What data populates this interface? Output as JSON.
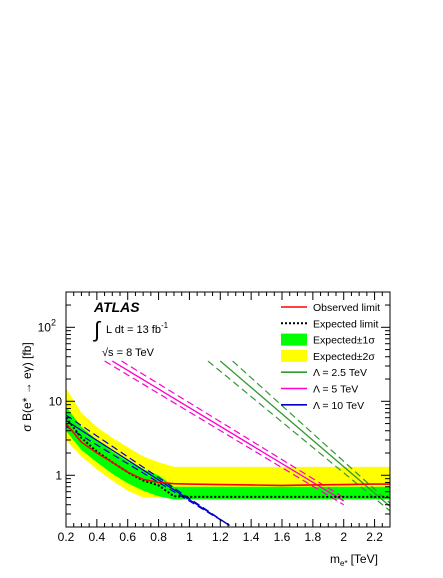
{
  "chart_data": {
    "type": "line",
    "x_scale": "linear",
    "y_scale": "log",
    "xlabel": "m",
    "xlabel_sub": "e*",
    "xlabel_unit": "[TeV]",
    "ylabel": "σ B(e* → eγ) [fb]",
    "xlim": [
      0.2,
      2.3
    ],
    "ylim": [
      0.2,
      300
    ],
    "x_ticks": [
      "0.2",
      "0.4",
      "0.6",
      "0.8",
      "1",
      "1.2",
      "1.4",
      "1.6",
      "1.8",
      "2",
      "2.2"
    ],
    "y_ticks": [
      "1",
      "10",
      "10^2"
    ],
    "annotation": {
      "experiment": "ATLAS",
      "lumi_integral": "∫",
      "lumi_text": "L dt = 13 fb",
      "lumi_exp": "-1",
      "energy_text": "√s = 8 TeV"
    },
    "legend": {
      "position": "top-right",
      "entries": [
        {
          "label": "Observed limit",
          "style": "line",
          "color": "#ff0000",
          "dash": "solid"
        },
        {
          "label": "Expected limit",
          "style": "line",
          "color": "#000000",
          "dash": "dotted"
        },
        {
          "label": "Expected±1σ",
          "style": "fill",
          "color": "#00ff00"
        },
        {
          "label": "Expected±2σ",
          "style": "fill",
          "color": "#ffff00"
        },
        {
          "label": "Λ = 2.5 TeV",
          "style": "line",
          "color": "#339933",
          "dash": "solid"
        },
        {
          "label": "Λ = 5 TeV",
          "style": "line",
          "color": "#ff00cc",
          "dash": "solid"
        },
        {
          "label": "Λ = 10 TeV",
          "style": "line",
          "color": "#0000cc",
          "dash": "solid"
        }
      ]
    },
    "series": [
      {
        "name": "Observed limit",
        "color": "#ff0000",
        "x": [
          0.2,
          0.3,
          0.4,
          0.5,
          0.6,
          0.7,
          0.8,
          0.9,
          1.0,
          1.2,
          1.4,
          1.6,
          1.8,
          2.0,
          2.2,
          2.3
        ],
        "y": [
          5.0,
          2.8,
          2.0,
          1.5,
          1.1,
          0.88,
          0.8,
          0.77,
          0.76,
          0.75,
          0.74,
          0.73,
          0.74,
          0.75,
          0.76,
          0.76
        ]
      },
      {
        "name": "Expected limit",
        "color": "#000000",
        "x": [
          0.2,
          0.3,
          0.4,
          0.5,
          0.6,
          0.7,
          0.8,
          0.9,
          1.0,
          1.2,
          1.4,
          1.6,
          1.8,
          2.0,
          2.2,
          2.3
        ],
        "y": [
          6.0,
          3.2,
          2.1,
          1.5,
          1.1,
          0.85,
          0.73,
          0.52,
          0.51,
          0.51,
          0.51,
          0.51,
          0.51,
          0.51,
          0.51,
          0.51
        ]
      },
      {
        "name": "Expected±1σ",
        "color": "#00ff00",
        "band": true,
        "x": [
          0.2,
          0.3,
          0.4,
          0.5,
          0.6,
          0.7,
          0.8,
          0.9,
          1.0,
          1.2,
          1.4,
          1.6,
          1.8,
          2.0,
          2.2,
          2.3
        ],
        "lo": [
          4.0,
          2.2,
          1.5,
          1.05,
          0.78,
          0.62,
          0.52,
          0.47,
          0.47,
          0.47,
          0.47,
          0.47,
          0.47,
          0.47,
          0.47,
          0.47
        ],
        "hi": [
          8.5,
          4.5,
          3.0,
          2.1,
          1.55,
          1.2,
          1.0,
          0.7,
          0.7,
          0.7,
          0.7,
          0.7,
          0.7,
          0.7,
          0.7,
          0.7
        ]
      },
      {
        "name": "Expected±2σ",
        "color": "#ffff00",
        "band": true,
        "x": [
          0.2,
          0.3,
          0.4,
          0.5,
          0.6,
          0.7,
          0.8,
          0.9,
          1.0,
          1.2,
          1.4,
          1.6,
          1.8,
          2.0,
          2.2,
          2.3
        ],
        "lo": [
          3.0,
          1.8,
          1.2,
          0.85,
          0.62,
          0.5,
          0.5,
          0.5,
          0.5,
          0.5,
          0.5,
          0.5,
          0.5,
          0.5,
          0.5,
          0.5
        ],
        "hi": [
          15.0,
          7.0,
          4.5,
          3.2,
          2.4,
          1.8,
          1.5,
          1.3,
          1.3,
          1.3,
          1.3,
          1.3,
          1.3,
          1.3,
          1.3,
          1.3
        ]
      },
      {
        "name": "Λ = 2.5 TeV",
        "color": "#339933",
        "theory": true,
        "x": [
          1.2,
          2.3
        ],
        "y": [
          35,
          0.38
        ],
        "y_up": [
          35,
          0.42
        ],
        "y_dn": [
          35,
          0.33
        ],
        "x_up_start": 1.28,
        "x_dn_start": 1.12
      },
      {
        "name": "Λ = 5 TeV",
        "color": "#ff00cc",
        "theory": true,
        "x": [
          0.5,
          2.0
        ],
        "y": [
          35,
          0.45
        ],
        "y_up": [
          35,
          0.5
        ],
        "y_dn": [
          35,
          0.4
        ],
        "x_up_start": 0.56,
        "x_dn_start": 0.45
      },
      {
        "name": "Λ = 10 TeV",
        "color": "#0000cc",
        "theory": true,
        "x": [
          0.2,
          1.26
        ],
        "y": [
          5.5,
          0.21
        ],
        "y_up": [
          6.5,
          0.21
        ],
        "y_dn": [
          4.6,
          0.21
        ],
        "x_up_start": 0.2,
        "x_dn_start": 0.2
      }
    ]
  }
}
